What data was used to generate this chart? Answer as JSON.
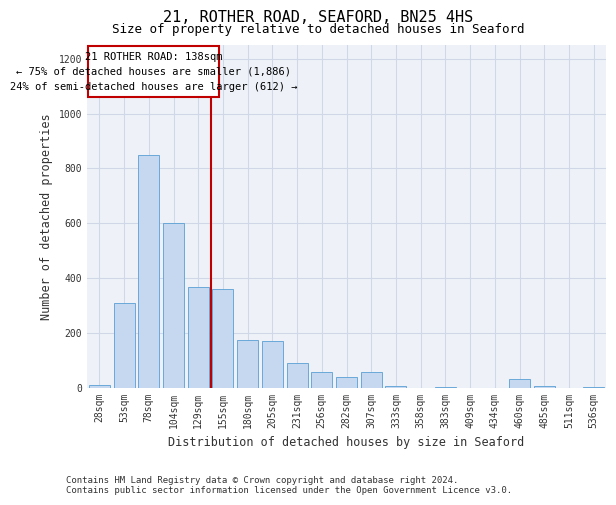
{
  "title": "21, ROTHER ROAD, SEAFORD, BN25 4HS",
  "subtitle": "Size of property relative to detached houses in Seaford",
  "xlabel": "Distribution of detached houses by size in Seaford",
  "ylabel": "Number of detached properties",
  "categories": [
    "28sqm",
    "53sqm",
    "78sqm",
    "104sqm",
    "129sqm",
    "155sqm",
    "180sqm",
    "205sqm",
    "231sqm",
    "256sqm",
    "282sqm",
    "307sqm",
    "333sqm",
    "358sqm",
    "383sqm",
    "409sqm",
    "434sqm",
    "460sqm",
    "485sqm",
    "511sqm",
    "536sqm"
  ],
  "values": [
    10,
    310,
    850,
    600,
    365,
    360,
    175,
    170,
    90,
    55,
    40,
    55,
    5,
    0,
    2,
    0,
    0,
    30,
    5,
    0,
    2
  ],
  "bar_color": "#c5d8f0",
  "bar_edge_color": "#5a9fd4",
  "grid_color": "#d0d8e8",
  "background_color": "#eef2f8",
  "red_line_x": 4.5,
  "annotation_box_text": "21 ROTHER ROAD: 138sqm\n← 75% of detached houses are smaller (1,886)\n24% of semi-detached houses are larger (612) →",
  "annotation_box_color": "#c00000",
  "ylim": [
    0,
    1250
  ],
  "yticks": [
    0,
    200,
    400,
    600,
    800,
    1000,
    1200
  ],
  "footnote": "Contains HM Land Registry data © Crown copyright and database right 2024.\nContains public sector information licensed under the Open Government Licence v3.0.",
  "title_fontsize": 11,
  "subtitle_fontsize": 9,
  "xlabel_fontsize": 8.5,
  "ylabel_fontsize": 8.5,
  "tick_fontsize": 7,
  "annotation_fontsize": 7.5,
  "footnote_fontsize": 6.5
}
